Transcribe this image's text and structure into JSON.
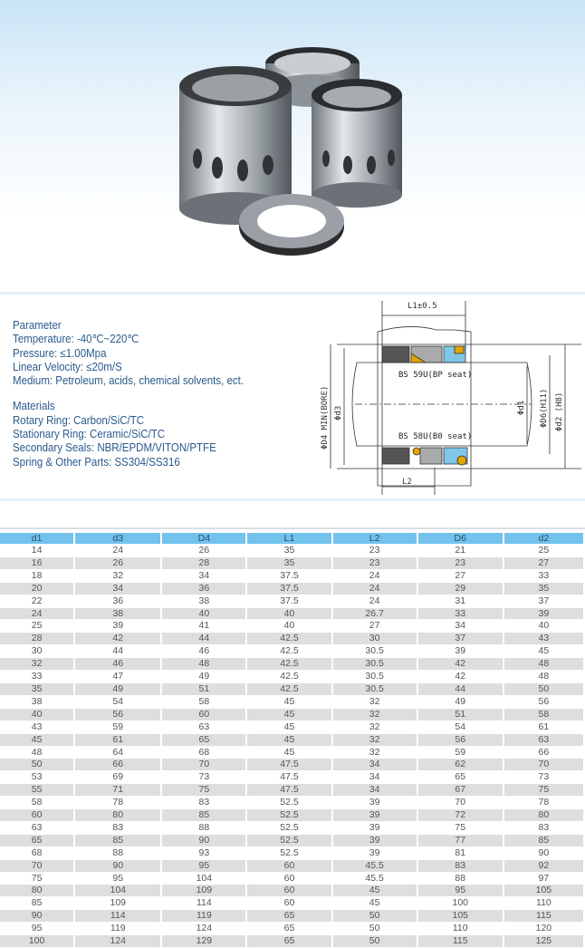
{
  "parameters": {
    "heading": "Parameter",
    "items": [
      "Temperature: -40℃~220℃",
      "Pressure: ≤1.00Mpa",
      "Linear Velocity: ≤20m/S",
      "Medium: Petroleum, acids, chemical solvents, ect."
    ]
  },
  "materials": {
    "heading": "Materials",
    "items": [
      "Rotary Ring: Carbon/SiC/TC",
      "Stationary Ring: Ceramic/SiC/TC",
      "Secondary Seals: NBR/EPDM/VITON/PTFE",
      "Spring & Other Parts: SS304/SS316"
    ]
  },
  "diagram": {
    "l1_label": "L1±0.5",
    "l2_label": "L2",
    "top_label": "BS 59U(BP seat)",
    "bottom_label": "BS 58U(B0 seat)",
    "d4_label": "ΦD4 MIN(BORE)",
    "d3_label": "Φd3",
    "d1_label": "Φd1",
    "d6_label": "ΦD6(H11)",
    "d2_label": "Φd2 (H8)"
  },
  "colors": {
    "header": "#72c2ee",
    "text": "#2a5a8c",
    "row_alt": "#dedede"
  },
  "table": {
    "columns": [
      "d1",
      "d3",
      "D4",
      "L1",
      "L2",
      "D6",
      "d2"
    ],
    "rows": [
      [
        "14",
        "24",
        "26",
        "35",
        "23",
        "21",
        "25"
      ],
      [
        "16",
        "26",
        "28",
        "35",
        "23",
        "23",
        "27"
      ],
      [
        "18",
        "32",
        "34",
        "37.5",
        "24",
        "27",
        "33"
      ],
      [
        "20",
        "34",
        "36",
        "37.5",
        "24",
        "29",
        "35"
      ],
      [
        "22",
        "36",
        "38",
        "37.5",
        "24",
        "31",
        "37"
      ],
      [
        "24",
        "38",
        "40",
        "40",
        "26.7",
        "33",
        "39"
      ],
      [
        "25",
        "39",
        "41",
        "40",
        "27",
        "34",
        "40"
      ],
      [
        "28",
        "42",
        "44",
        "42.5",
        "30",
        "37",
        "43"
      ],
      [
        "30",
        "44",
        "46",
        "42.5",
        "30.5",
        "39",
        "45"
      ],
      [
        "32",
        "46",
        "48",
        "42.5",
        "30.5",
        "42",
        "48"
      ],
      [
        "33",
        "47",
        "49",
        "42.5",
        "30.5",
        "42",
        "48"
      ],
      [
        "35",
        "49",
        "51",
        "42.5",
        "30.5",
        "44",
        "50"
      ],
      [
        "38",
        "54",
        "58",
        "45",
        "32",
        "49",
        "56"
      ],
      [
        "40",
        "56",
        "60",
        "45",
        "32",
        "51",
        "58"
      ],
      [
        "43",
        "59",
        "63",
        "45",
        "32",
        "54",
        "61"
      ],
      [
        "45",
        "61",
        "65",
        "45",
        "32",
        "56",
        "63"
      ],
      [
        "48",
        "64",
        "68",
        "45",
        "32",
        "59",
        "66"
      ],
      [
        "50",
        "66",
        "70",
        "47.5",
        "34",
        "62",
        "70"
      ],
      [
        "53",
        "69",
        "73",
        "47.5",
        "34",
        "65",
        "73"
      ],
      [
        "55",
        "71",
        "75",
        "47.5",
        "34",
        "67",
        "75"
      ],
      [
        "58",
        "78",
        "83",
        "52.5",
        "39",
        "70",
        "78"
      ],
      [
        "60",
        "80",
        "85",
        "52.5",
        "39",
        "72",
        "80"
      ],
      [
        "63",
        "83",
        "88",
        "52.5",
        "39",
        "75",
        "83"
      ],
      [
        "65",
        "85",
        "90",
        "52.5",
        "39",
        "77",
        "85"
      ],
      [
        "68",
        "88",
        "93",
        "52.5",
        "39",
        "81",
        "90"
      ],
      [
        "70",
        "90",
        "95",
        "60",
        "45.5",
        "83",
        "92"
      ],
      [
        "75",
        "95",
        "104",
        "60",
        "45.5",
        "88",
        "97"
      ],
      [
        "80",
        "104",
        "109",
        "60",
        "45",
        "95",
        "105"
      ],
      [
        "85",
        "109",
        "114",
        "60",
        "45",
        "100",
        "110"
      ],
      [
        "90",
        "114",
        "119",
        "65",
        "50",
        "105",
        "115"
      ],
      [
        "95",
        "119",
        "124",
        "65",
        "50",
        "110",
        "120"
      ],
      [
        "100",
        "124",
        "129",
        "65",
        "50",
        "115",
        "125"
      ]
    ]
  }
}
